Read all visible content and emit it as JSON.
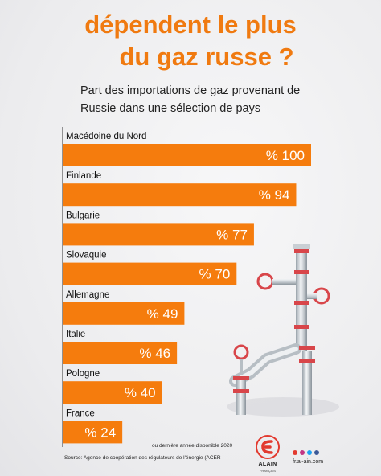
{
  "header": {
    "title_line1": "dépendent le plus",
    "title_line2": "du gaz russe ?",
    "subtitle_line1": "Part des importations de gaz provenant de",
    "subtitle_line2": "Russie dans une sélection de pays"
  },
  "colors": {
    "accent": "#f07a10",
    "bar": "#f57c0d",
    "text": "#111111",
    "logo_red": "#e23a2f"
  },
  "chart_data": {
    "type": "bar",
    "orientation": "horizontal",
    "categories": [
      "Macédoine du Nord",
      "Finlande",
      "Bulgarie",
      "Slovaquie",
      "Allemagne",
      "Italie",
      "Pologne",
      "France"
    ],
    "values": [
      100,
      94,
      77,
      70,
      49,
      46,
      40,
      24
    ],
    "value_labels": [
      "% 100",
      "% 94",
      "% 77",
      "% 70",
      "% 49",
      "% 46",
      "% 40",
      "% 24"
    ],
    "title": "Part des importations de gaz provenant de Russie dans une sélection de pays",
    "xlim": [
      0,
      100
    ],
    "grid": false,
    "legend": "none"
  },
  "footer": {
    "note": "ou dernière année disponible 2020",
    "source": "Source: Agence de coopération des régulateurs de l'énergie (ACER",
    "brand_name": "ALAIN",
    "brand_sub": "FRANÇAIS",
    "website": "fr.al-ain.com",
    "social_icons": [
      "youtube-icon",
      "instagram-icon",
      "twitter-icon",
      "facebook-icon"
    ]
  }
}
